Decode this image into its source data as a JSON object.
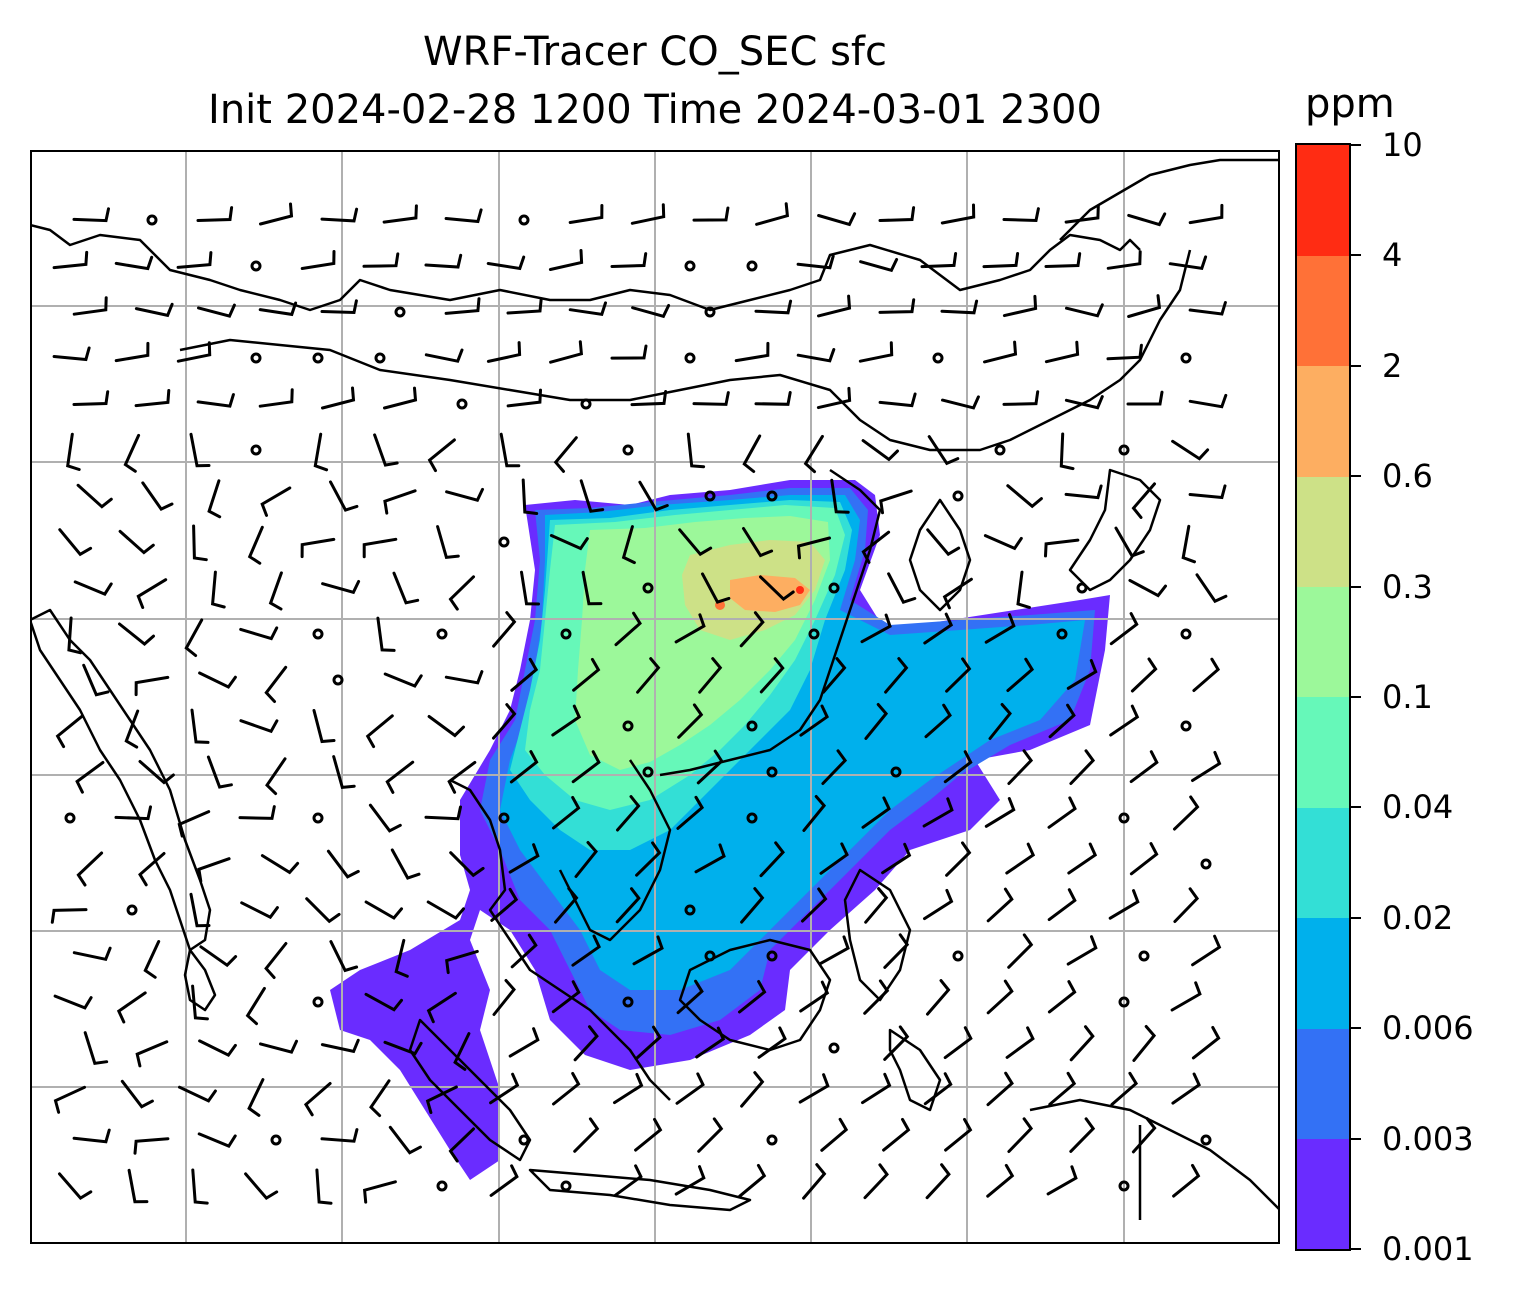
{
  "title": {
    "line1": "WRF-Tracer CO_SEC sfc",
    "line2": "Init 2024-02-28 1200 Time 2024-03-01 2300"
  },
  "colorbar": {
    "unit": "ppm",
    "levels": [
      "0.001",
      "0.003",
      "0.006",
      "0.02",
      "0.04",
      "0.1",
      "0.3",
      "0.6",
      "2",
      "4",
      "10"
    ],
    "colors": [
      "#6a2cff",
      "#3371f5",
      "#00b0ec",
      "#33dfd6",
      "#66f8b9",
      "#9cf89a",
      "#cde187",
      "#fdae61",
      "#ff7137",
      "#ff2c13"
    ]
  },
  "map": {
    "gridlines": "on",
    "coastline_color": "#000000",
    "gridline_color": "#b0b0b0",
    "wind_barbs": "on"
  }
}
